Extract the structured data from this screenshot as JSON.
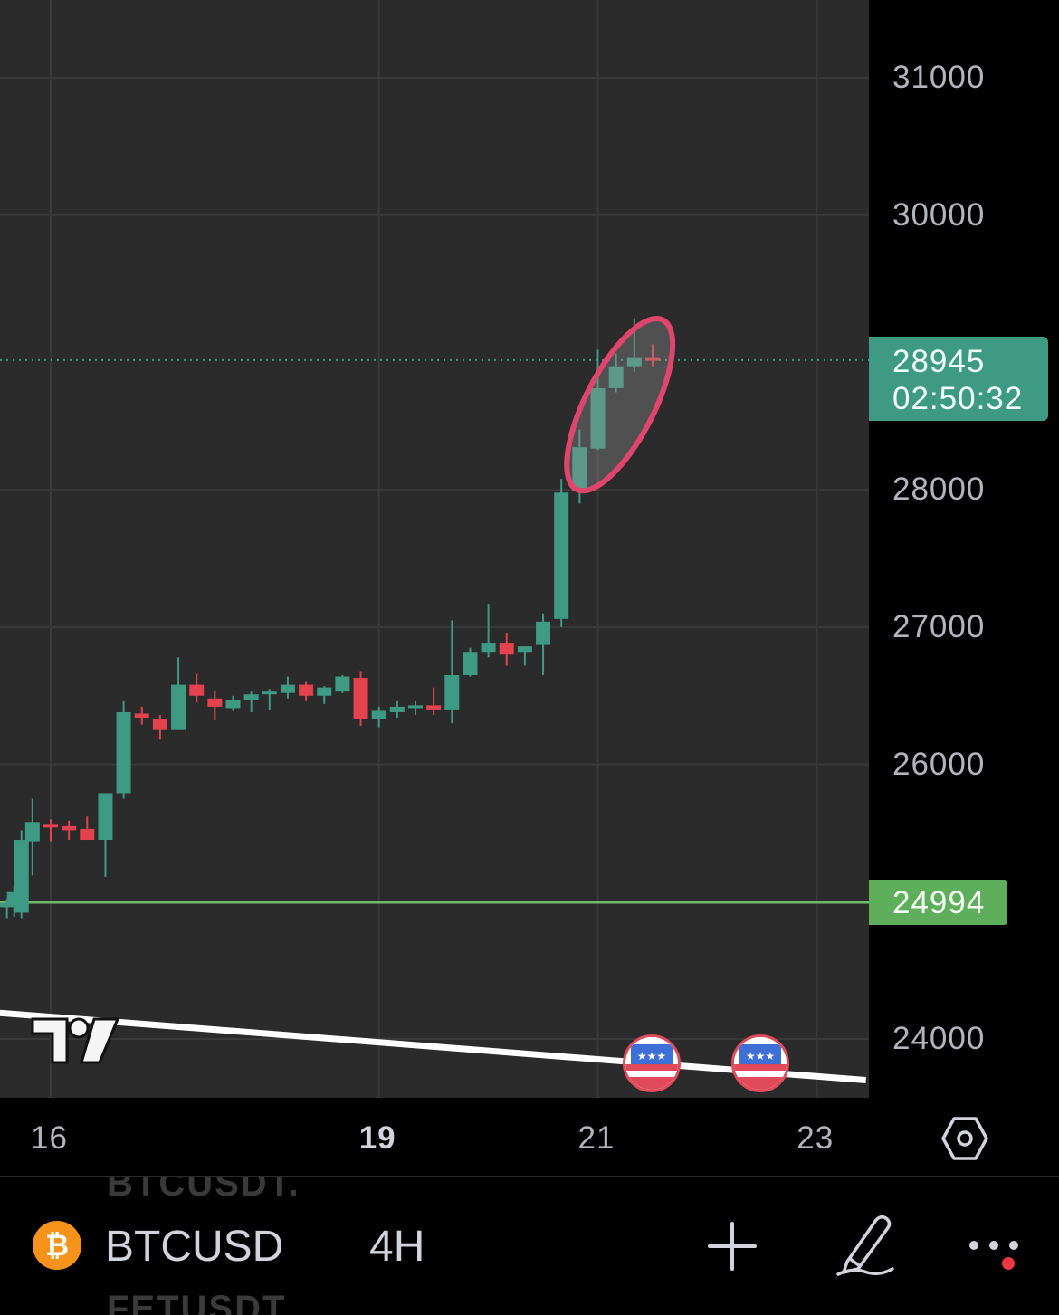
{
  "chart_data": {
    "type": "candlestick",
    "symbol": "BTCUSD",
    "interval": "4H",
    "y_ticks": [
      24000,
      26000,
      27000,
      28000,
      30000,
      31000
    ],
    "ylim": [
      23580,
      31550
    ],
    "x_ticks": [
      {
        "label": "16",
        "index": 0,
        "bold": false
      },
      {
        "label": "19",
        "index": 18,
        "bold": true
      },
      {
        "label": "21",
        "index": 30,
        "bold": false
      },
      {
        "label": "23",
        "index": 42,
        "bold": false
      }
    ],
    "last_price": {
      "value": "28945",
      "countdown": "02:50:32"
    },
    "horizontal_level": {
      "value": "24994"
    },
    "candles": [
      {
        "i": -2.4,
        "o": 24960,
        "h": 25020,
        "l": 24880,
        "c": 24990
      },
      {
        "i": -2.0,
        "o": 24970,
        "h": 25110,
        "l": 24890,
        "c": 25070
      },
      {
        "i": -1.6,
        "o": 24920,
        "h": 25520,
        "l": 24880,
        "c": 25450
      },
      {
        "i": -1.0,
        "o": 25440,
        "h": 25750,
        "l": 25190,
        "c": 25580
      },
      {
        "i": 0.0,
        "o": 25560,
        "h": 25600,
        "l": 25440,
        "c": 25540
      },
      {
        "i": 1.0,
        "o": 25550,
        "h": 25590,
        "l": 25450,
        "c": 25520
      },
      {
        "i": 2.0,
        "o": 25530,
        "h": 25620,
        "l": 25450,
        "c": 25450
      },
      {
        "i": 3.0,
        "o": 25450,
        "h": 25780,
        "l": 25180,
        "c": 25790
      },
      {
        "i": 4.0,
        "o": 25790,
        "h": 26460,
        "l": 25750,
        "c": 26380
      },
      {
        "i": 5.0,
        "o": 26370,
        "h": 26420,
        "l": 26290,
        "c": 26340
      },
      {
        "i": 6.0,
        "o": 26330,
        "h": 26360,
        "l": 26180,
        "c": 26250
      },
      {
        "i": 7.0,
        "o": 26250,
        "h": 26780,
        "l": 26250,
        "c": 26580
      },
      {
        "i": 8.0,
        "o": 26580,
        "h": 26660,
        "l": 26450,
        "c": 26500
      },
      {
        "i": 9.0,
        "o": 26480,
        "h": 26540,
        "l": 26320,
        "c": 26420
      },
      {
        "i": 10.0,
        "o": 26410,
        "h": 26500,
        "l": 26390,
        "c": 26470
      },
      {
        "i": 11.0,
        "o": 26470,
        "h": 26530,
        "l": 26380,
        "c": 26510
      },
      {
        "i": 12.0,
        "o": 26510,
        "h": 26550,
        "l": 26400,
        "c": 26530
      },
      {
        "i": 13.0,
        "o": 26520,
        "h": 26640,
        "l": 26480,
        "c": 26580
      },
      {
        "i": 14.0,
        "o": 26580,
        "h": 26600,
        "l": 26460,
        "c": 26500
      },
      {
        "i": 15.0,
        "o": 26500,
        "h": 26570,
        "l": 26440,
        "c": 26560
      },
      {
        "i": 16.0,
        "o": 26530,
        "h": 26650,
        "l": 26520,
        "c": 26640
      },
      {
        "i": 17.0,
        "o": 26630,
        "h": 26680,
        "l": 26280,
        "c": 26330
      },
      {
        "i": 18.0,
        "o": 26330,
        "h": 26420,
        "l": 26270,
        "c": 26390
      },
      {
        "i": 19.0,
        "o": 26380,
        "h": 26460,
        "l": 26340,
        "c": 26420
      },
      {
        "i": 20.0,
        "o": 26410,
        "h": 26460,
        "l": 26360,
        "c": 26430
      },
      {
        "i": 21.0,
        "o": 26430,
        "h": 26560,
        "l": 26360,
        "c": 26400
      },
      {
        "i": 22.0,
        "o": 26400,
        "h": 27050,
        "l": 26300,
        "c": 26650
      },
      {
        "i": 23.0,
        "o": 26650,
        "h": 26850,
        "l": 26640,
        "c": 26820
      },
      {
        "i": 24.0,
        "o": 26820,
        "h": 27170,
        "l": 26780,
        "c": 26880
      },
      {
        "i": 25.0,
        "o": 26880,
        "h": 26960,
        "l": 26720,
        "c": 26800
      },
      {
        "i": 26.0,
        "o": 26820,
        "h": 26860,
        "l": 26720,
        "c": 26860
      },
      {
        "i": 27.0,
        "o": 26870,
        "h": 27100,
        "l": 26650,
        "c": 27040
      },
      {
        "i": 28.0,
        "o": 27060,
        "h": 28080,
        "l": 27000,
        "c": 27980
      },
      {
        "i": 29.0,
        "o": 27990,
        "h": 28440,
        "l": 27900,
        "c": 28310
      },
      {
        "i": 30.0,
        "o": 28300,
        "h": 29020,
        "l": 28290,
        "c": 28740
      },
      {
        "i": 31.0,
        "o": 28740,
        "h": 28990,
        "l": 28710,
        "c": 28900
      },
      {
        "i": 32.0,
        "o": 28900,
        "h": 29250,
        "l": 28860,
        "c": 28960
      },
      {
        "i": 33.0,
        "o": 28960,
        "h": 29060,
        "l": 28900,
        "c": 28945
      }
    ],
    "trendline": {
      "from": {
        "i": -2.8,
        "price": 24190
      },
      "to": {
        "i": 44.7,
        "price": 23700
      }
    },
    "highlight_ellipse": {
      "center_i": 31.2,
      "center_price": 28620,
      "color": "#e0456e"
    }
  },
  "colors": {
    "up": "#3f9a83",
    "down": "#e4424f",
    "background": "#2b2b2b",
    "grid": "#3a3a3a",
    "level": "#6fb86c",
    "trendline": "#ffffff"
  },
  "bottom_bar": {
    "ghost_top": "BTCUSDT.",
    "ghost_bottom": "FETUSDT",
    "symbol": "BTCUSD",
    "interval": "4H",
    "icons": [
      "bitcoin-icon",
      "plus-icon",
      "pen-icon",
      "more-icon"
    ]
  },
  "flags": [
    "us-flag-icon",
    "us-flag-icon"
  ]
}
